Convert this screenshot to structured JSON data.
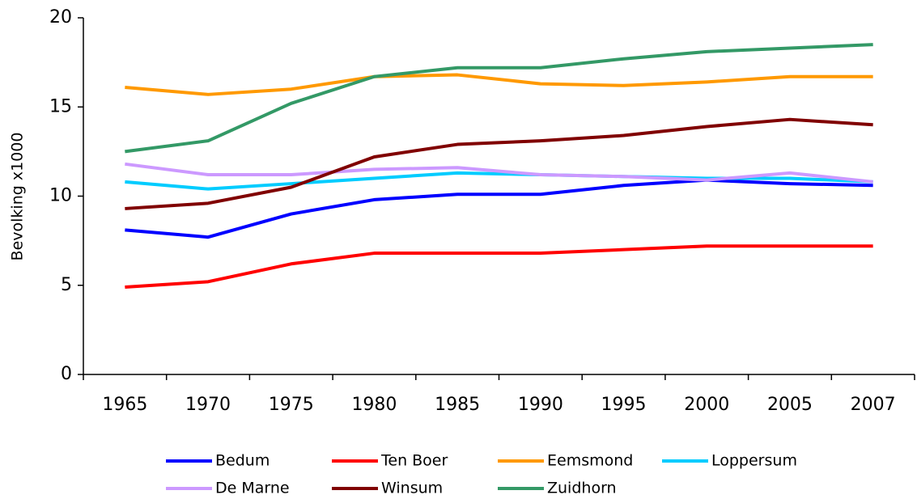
{
  "chart_data": {
    "type": "line",
    "ylabel": "Bevolking x1000",
    "categories": [
      "1965",
      "1970",
      "1975",
      "1980",
      "1985",
      "1990",
      "1995",
      "2000",
      "2005",
      "2007"
    ],
    "series": [
      {
        "name": "Bedum",
        "color": "#0000ff",
        "values": [
          8.1,
          7.7,
          9.0,
          9.8,
          10.1,
          10.1,
          10.6,
          10.9,
          10.7,
          10.6
        ]
      },
      {
        "name": "Ten Boer",
        "color": "#ff0000",
        "values": [
          4.9,
          5.2,
          6.2,
          6.8,
          6.8,
          6.8,
          7.0,
          7.2,
          7.2,
          7.2
        ]
      },
      {
        "name": "Eemsmond",
        "color": "#ff9900",
        "values": [
          16.1,
          15.7,
          16.0,
          16.7,
          16.8,
          16.3,
          16.2,
          16.4,
          16.7,
          16.7
        ]
      },
      {
        "name": "Loppersum",
        "color": "#00ccff",
        "values": [
          10.8,
          10.4,
          10.7,
          11.0,
          11.3,
          11.2,
          11.1,
          11.0,
          11.0,
          10.8
        ]
      },
      {
        "name": "De Marne",
        "color": "#cc99ff",
        "values": [
          11.8,
          11.2,
          11.2,
          11.5,
          11.6,
          11.2,
          11.1,
          10.9,
          11.3,
          10.8
        ]
      },
      {
        "name": "Winsum",
        "color": "#800000",
        "values": [
          9.3,
          9.6,
          10.5,
          12.2,
          12.9,
          13.1,
          13.4,
          13.9,
          14.3,
          14.0
        ]
      },
      {
        "name": "Zuidhorn",
        "color": "#339966",
        "values": [
          12.5,
          13.1,
          15.2,
          16.7,
          17.2,
          17.2,
          17.7,
          18.1,
          18.3,
          18.5
        ]
      }
    ],
    "ylim": [
      0,
      20
    ],
    "yticks": [
      0,
      5,
      10,
      15,
      20
    ],
    "grid": false
  }
}
